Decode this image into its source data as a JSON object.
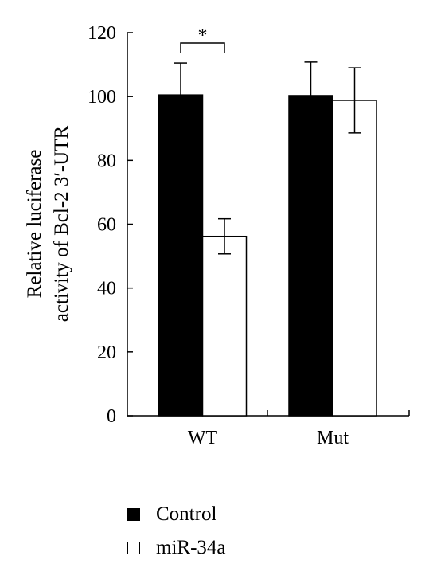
{
  "chart_data": {
    "type": "bar",
    "categories": [
      "WT",
      "Mut"
    ],
    "series": [
      {
        "name": "Control",
        "values": [
          100.5,
          100.3
        ],
        "errors": [
          10,
          10.5
        ],
        "color": "#000000"
      },
      {
        "name": "miR-34a",
        "values": [
          56.2,
          98.8
        ],
        "errors": [
          5.5,
          10.2
        ],
        "color": "#ffffff"
      }
    ],
    "ylabel_lines": [
      "Relative luciferase",
      "activity of Bcl-2 3′-UTR"
    ],
    "xlabel": "",
    "ylim": [
      0,
      120
    ],
    "yticks": [
      0,
      20,
      40,
      60,
      80,
      100,
      120
    ],
    "grid": false,
    "legend_position": "bottom",
    "significance": [
      {
        "group": "WT",
        "label": "*"
      }
    ]
  }
}
